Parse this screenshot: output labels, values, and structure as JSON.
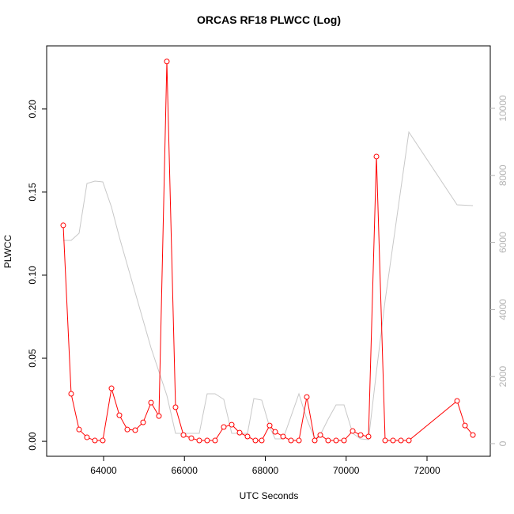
{
  "chart_data": {
    "type": "line",
    "title": "ORCAS RF18 PLWCC (Log)",
    "xlabel": "UTC Seconds",
    "ylabel": "PLWCC",
    "xlim": [
      62592,
      73565
    ],
    "ylim": [
      -0.009,
      0.238
    ],
    "y2lim": [
      -377,
      11863
    ],
    "xticks": [
      64000,
      66000,
      68000,
      70000,
      72000
    ],
    "yticks": [
      {
        "value": 0,
        "label": "0.00"
      },
      {
        "value": 0.05,
        "label": "0.05"
      },
      {
        "value": 0.1,
        "label": "0.10"
      },
      {
        "value": 0.15,
        "label": "0.15"
      },
      {
        "value": 0.2,
        "label": "0.20"
      }
    ],
    "y2ticks": [
      0,
      2000,
      4000,
      6000,
      8000,
      10000
    ],
    "series": [
      {
        "color": "#c8c8c8",
        "axis": "y2",
        "markers": false,
        "x": [
          63002,
          63198,
          63394,
          63589,
          63785,
          63980,
          64196,
          64391,
          64782,
          65174,
          65565,
          65780,
          65976,
          66367,
          66562,
          66758,
          66973,
          67169,
          67560,
          67717,
          67912,
          68108,
          68245,
          68440,
          68832,
          69027,
          69223,
          69360,
          69555,
          69751,
          69947,
          70162,
          70358,
          70553,
          70749,
          70964,
          71551,
          72744,
          73135
        ],
        "values": [
          6061,
          6061,
          6274,
          7759,
          7830,
          7807,
          7052,
          6156,
          4505,
          2854,
          1439,
          307,
          307,
          307,
          1486,
          1486,
          1321,
          307,
          307,
          1344,
          1297,
          495,
          142,
          142,
          1486,
          731,
          142,
          259,
          731,
          1156,
          1156,
          307,
          142,
          118,
          2146,
          4269,
          9292,
          7123,
          7099
        ]
      },
      {
        "color": "#ff0000",
        "axis": "y",
        "markers": true,
        "x": [
          63002,
          63198,
          63394,
          63589,
          63785,
          63980,
          64196,
          64391,
          64587,
          64782,
          64978,
          65174,
          65369,
          65565,
          65780,
          65976,
          66171,
          66367,
          66562,
          66758,
          66973,
          67169,
          67365,
          67560,
          67756,
          67912,
          68108,
          68245,
          68440,
          68636,
          68832,
          69027,
          69223,
          69360,
          69555,
          69751,
          69947,
          70162,
          70358,
          70553,
          70749,
          70964,
          71159,
          71355,
          71551,
          72744,
          72940,
          73135
        ],
        "values": [
          0.13,
          0.0286,
          0.0071,
          0.0024,
          0.0005,
          0.0005,
          0.0319,
          0.0157,
          0.0071,
          0.0067,
          0.0114,
          0.0233,
          0.0152,
          0.2286,
          0.0205,
          0.0038,
          0.0019,
          0.0005,
          0.0005,
          0.0005,
          0.0086,
          0.01,
          0.0052,
          0.0029,
          0.0005,
          0.0005,
          0.0095,
          0.0057,
          0.0029,
          0.0005,
          0.0005,
          0.0267,
          0.0005,
          0.0038,
          0.0005,
          0.0005,
          0.0005,
          0.0062,
          0.0038,
          0.0029,
          0.1714,
          0.0005,
          0.0005,
          0.0005,
          0.0005,
          0.0243,
          0.0095,
          0.0038
        ]
      }
    ]
  }
}
